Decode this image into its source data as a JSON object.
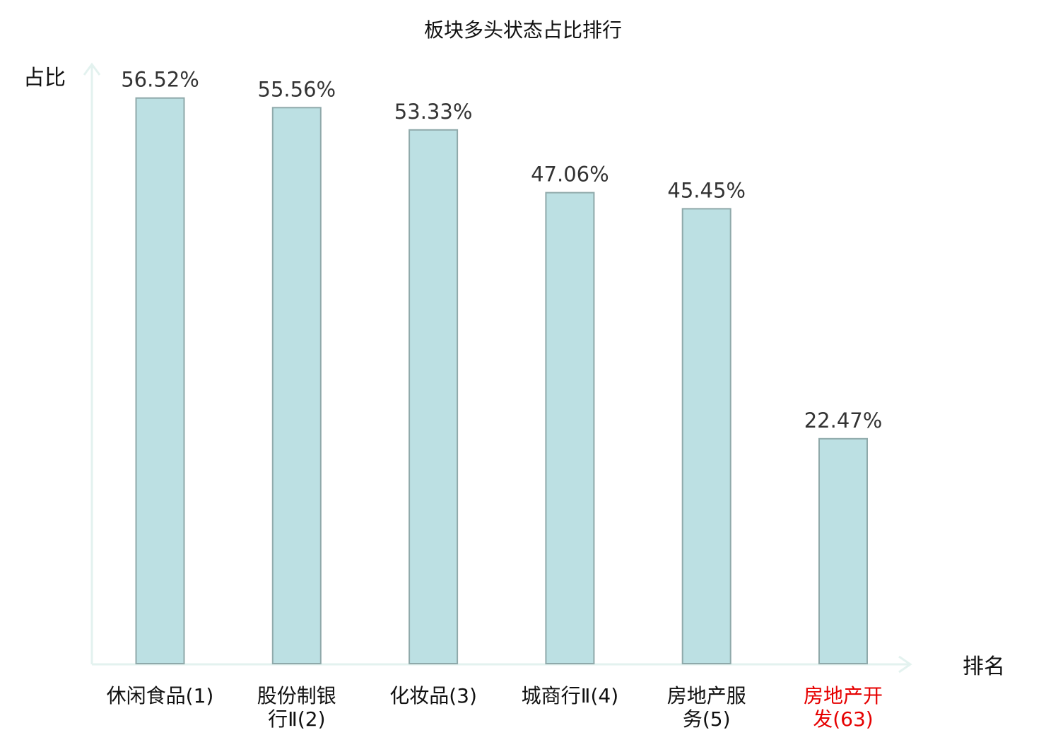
{
  "chart_data": {
    "type": "bar",
    "title": "板块多头状态占比排行",
    "ylabel": "占比",
    "xlabel": "排名",
    "ylim": [
      0,
      60
    ],
    "grid": false,
    "categories": [
      [
        "休闲食品(1)"
      ],
      [
        "股份制银",
        "行Ⅱ(2)"
      ],
      [
        "化妆品(3)"
      ],
      [
        "城商行Ⅱ(4)"
      ],
      [
        "房地产服",
        "务(5)"
      ],
      [
        "房地产开",
        "发(63)"
      ]
    ],
    "values": [
      56.52,
      55.56,
      53.33,
      47.06,
      45.45,
      22.47
    ],
    "value_labels": [
      "56.52%",
      "55.56%",
      "53.33%",
      "47.06%",
      "45.45%",
      "22.47%"
    ],
    "highlight_index": 5,
    "colors": {
      "bar_fill": "#bce0e3",
      "bar_stroke": "#8fa9aa",
      "axis": "#e3f2ef",
      "highlight_label": "#e60000",
      "label": "#111111"
    }
  }
}
